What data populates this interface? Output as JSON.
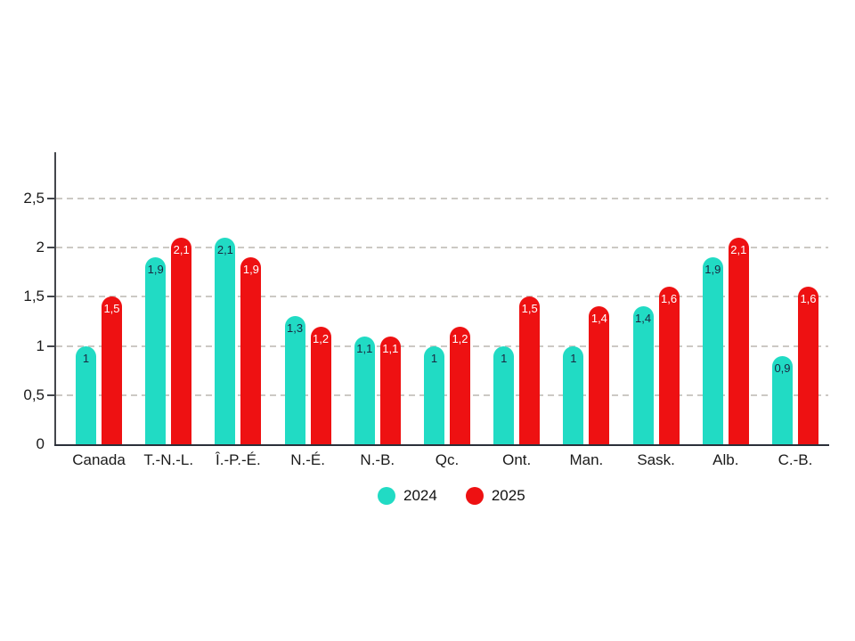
{
  "chart_data": {
    "type": "bar",
    "title": "",
    "xlabel": "",
    "ylabel": "",
    "categories": [
      "Canada",
      "T.-N.-L.",
      "Î.-P.-É.",
      "N.-É.",
      "N.-B.",
      "Qc.",
      "Ont.",
      "Man.",
      "Sask.",
      "Alb.",
      "C.-B."
    ],
    "series": [
      {
        "name": "2024",
        "color": "#21DBC4",
        "value_label_color": "#1A2640",
        "values": [
          1,
          1.9,
          2.1,
          1.3,
          1.1,
          1,
          1,
          1,
          1.4,
          1.9,
          0.9
        ],
        "value_labels": [
          "1",
          "1,9",
          "2,1",
          "1,3",
          "1,1",
          "1",
          "1",
          "1",
          "1,4",
          "1,9",
          "0,9"
        ]
      },
      {
        "name": "2025",
        "color": "#EE1112",
        "value_label_color": "#FFFFFF",
        "values": [
          1.5,
          2.1,
          1.9,
          1.2,
          1.1,
          1.2,
          1.5,
          1.4,
          1.6,
          2.1,
          1.6
        ],
        "value_labels": [
          "1,5",
          "2,1",
          "1,9",
          "1,2",
          "1,1",
          "1,2",
          "1,5",
          "1,4",
          "1,6",
          "2,1",
          "1,6"
        ]
      }
    ],
    "yticks": [
      {
        "value": 0,
        "label": "0"
      },
      {
        "value": 0.5,
        "label": "0,5"
      },
      {
        "value": 1,
        "label": "1"
      },
      {
        "value": 1.5,
        "label": "1,5"
      },
      {
        "value": 2,
        "label": "2"
      },
      {
        "value": 2.5,
        "label": "2,5"
      }
    ],
    "ylim": [
      0,
      3
    ],
    "grid": "horizontal-dashed",
    "legend_position": "bottom",
    "decimal_separator": ","
  },
  "colors": {
    "background": "#FFFFFF",
    "axis": "#44474C",
    "gridline": "#CCC9C4",
    "tick_label": "#1A1A1A"
  }
}
